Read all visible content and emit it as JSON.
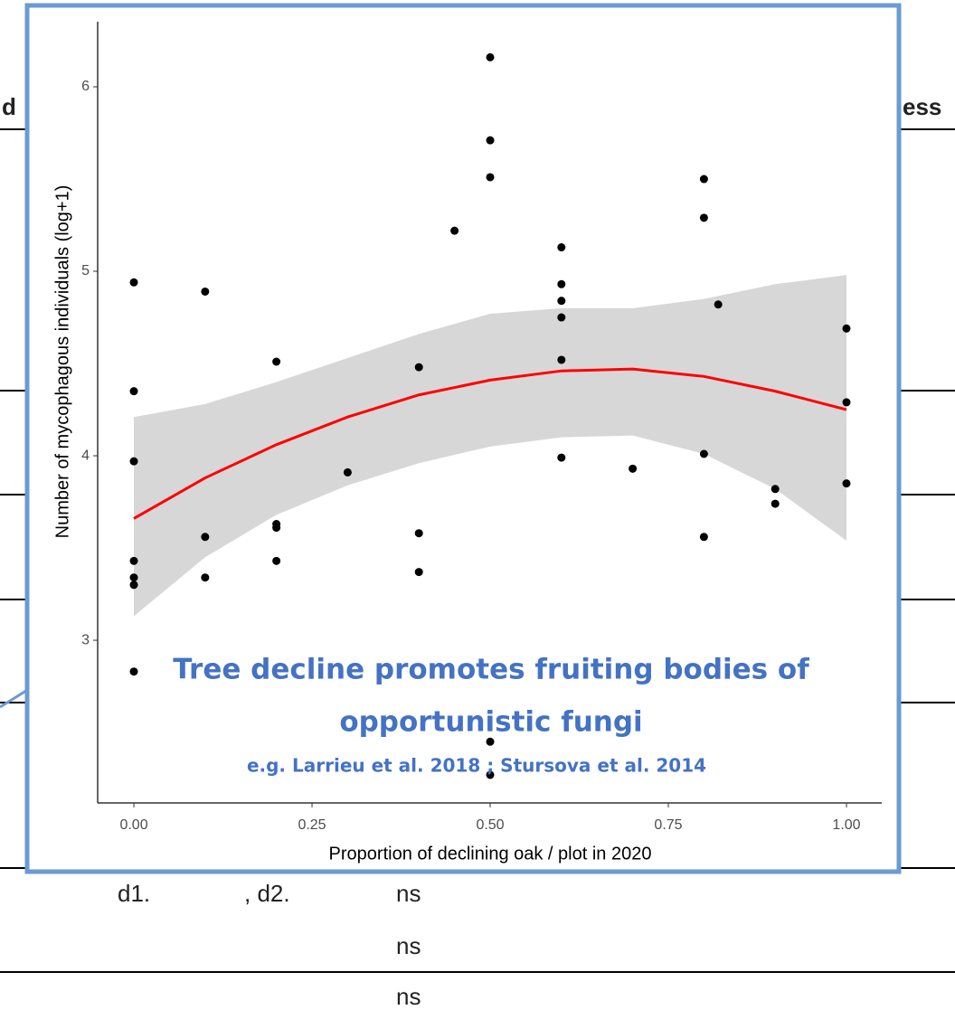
{
  "slide_text": {
    "top_left": "d",
    "top_right": "ess",
    "row_a_left": "d1.",
    "row_a_mid": ", d2.",
    "row_a_right": "ns",
    "row_b": "ns",
    "row_c": "ns"
  },
  "chart_data": {
    "type": "scatter",
    "x_label": "Proportion of declining oak / plot in 2020",
    "y_label": "Number of mycophagous individuals (log+1)",
    "annotation": "Tree decline promotes fruiting bodies of",
    "annotation_line2": "opportunistic fungi",
    "reference": "e.g. Larrieu et al. 2018 ; Stursova et al. 2014",
    "xlim": [
      -0.0508,
      1.0495
    ],
    "ylim": [
      2.118,
      6.353
    ],
    "xticks": [
      {
        "value": 0,
        "label": "0.00"
      },
      {
        "value": 0.25,
        "label": "0.25"
      },
      {
        "value": 0.5,
        "label": "0.50"
      },
      {
        "value": 0.75,
        "label": "0.75"
      },
      {
        "value": 1,
        "label": "1.00"
      }
    ],
    "yticks": [
      3,
      4,
      5,
      6
    ],
    "series": [
      {
        "color": "#000000",
        "x": [
          0,
          0,
          0,
          0,
          0,
          0,
          0,
          0.1,
          0.1,
          0.1,
          0.2,
          0.2,
          0.2,
          0.2,
          0.3,
          0.4,
          0.4,
          0.4,
          0.45,
          0.5,
          0.5,
          0.5,
          0.5,
          0.5,
          0.6,
          0.6,
          0.6,
          0.6,
          0.6,
          0.6,
          0.7,
          0.8,
          0.8,
          0.8,
          0.8,
          0.82,
          0.9,
          0.9,
          1,
          1,
          1
        ],
        "values": [
          4.94,
          4.35,
          3.97,
          3.43,
          3.34,
          3.3,
          2.83,
          4.89,
          3.56,
          3.34,
          4.51,
          3.63,
          3.61,
          3.43,
          3.91,
          4.48,
          3.58,
          3.37,
          5.22,
          6.16,
          5.71,
          5.51,
          2.45,
          2.27,
          5.13,
          4.93,
          4.84,
          4.75,
          4.52,
          3.99,
          3.93,
          5.5,
          5.29,
          4.01,
          3.56,
          4.82,
          3.82,
          3.74,
          4.69,
          4.29,
          3.85
        ]
      }
    ],
    "fit": {
      "color": "#ff0000",
      "band_color": "#d3d3d3",
      "x": [
        0,
        0.1,
        0.2,
        0.3,
        0.4,
        0.5,
        0.6,
        0.7,
        0.8,
        0.9,
        1.0
      ],
      "values": [
        3.66,
        3.88,
        4.06,
        4.21,
        4.33,
        4.41,
        4.46,
        4.47,
        4.43,
        4.35,
        4.25
      ],
      "lower": [
        3.13,
        3.45,
        3.68,
        3.84,
        3.96,
        4.05,
        4.1,
        4.11,
        4.01,
        3.82,
        3.54
      ],
      "upper": [
        4.21,
        4.28,
        4.4,
        4.53,
        4.66,
        4.77,
        4.8,
        4.8,
        4.85,
        4.93,
        4.98
      ]
    }
  }
}
